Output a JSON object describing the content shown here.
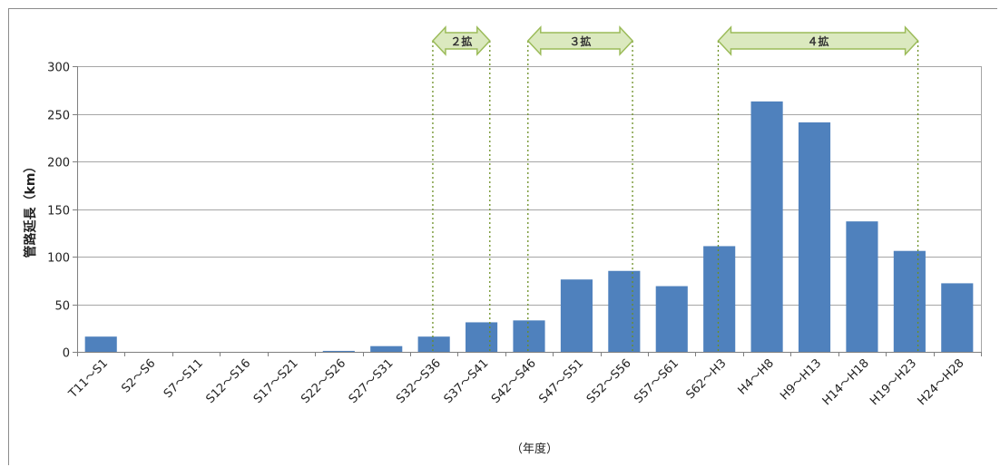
{
  "chart_data": {
    "type": "bar",
    "title": "",
    "xlabel": "（年度）",
    "ylabel": "管路延長（km）",
    "ylim": [
      0,
      300
    ],
    "yticks": [
      0,
      50,
      100,
      150,
      200,
      250,
      300
    ],
    "grid": true,
    "bar_color": "#4f81bd",
    "categories": [
      "T11～S1",
      "S2～S6",
      "S7～S11",
      "S12～S16",
      "S17～S21",
      "S22～S26",
      "S27～S31",
      "S32～S36",
      "S37～S41",
      "S42～S46",
      "S47～S51",
      "S52～S56",
      "S57～S61",
      "S62～H3",
      "H4～H8",
      "H9～H13",
      "H14～H18",
      "H19～H23",
      "H24～H28"
    ],
    "values": [
      16,
      0,
      0,
      0,
      0,
      1,
      6,
      16,
      31,
      33,
      76,
      85,
      69,
      111,
      263,
      241,
      137,
      106,
      72
    ],
    "annotations": [
      {
        "label": "２拡",
        "from_category": "S32～S36",
        "to_category": "S37～S41"
      },
      {
        "label": "３拡",
        "from_category": "S42～S46",
        "to_category": "S52～S56"
      },
      {
        "label": "４拡",
        "from_category": "S62～H3",
        "to_category": "H19～H23"
      }
    ],
    "annotation_fill": "#dbe9bf",
    "annotation_stroke": "#9bbb59",
    "annotation_line_color": "#6b8e23"
  }
}
